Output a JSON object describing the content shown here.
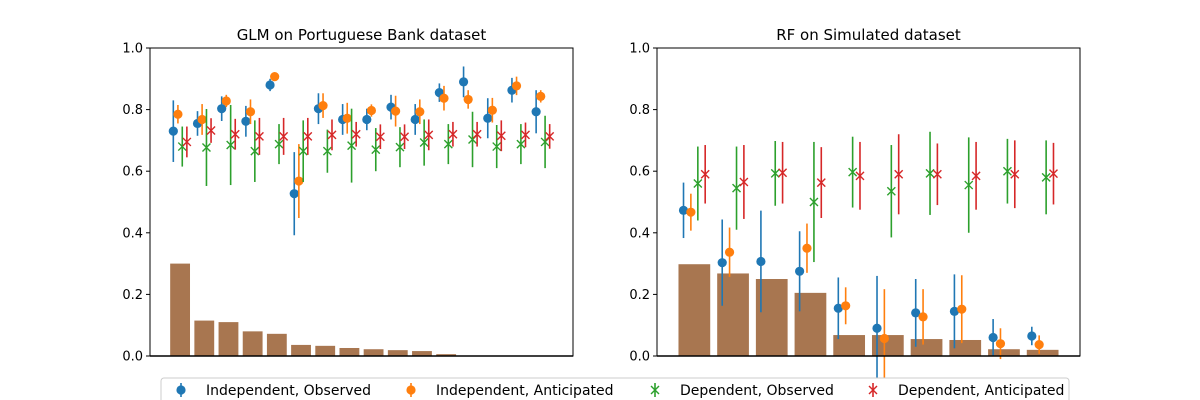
{
  "chart_data": [
    {
      "type": "errorbar+bar",
      "title": "GLM on Portuguese Bank dataset",
      "ylim": [
        0,
        1
      ],
      "yticks": [
        0.0,
        0.2,
        0.4,
        0.6,
        0.8,
        1.0
      ],
      "ytick_labels": [
        "0.0",
        "0.2",
        "0.4",
        "0.6",
        "0.8",
        "1.0"
      ],
      "n_groups": 16,
      "bar_values": [
        0.3,
        0.115,
        0.11,
        0.08,
        0.072,
        0.036,
        0.033,
        0.026,
        0.022,
        0.019,
        0.016,
        0.006,
        0,
        0,
        0,
        0
      ],
      "series": [
        {
          "name": "Independent, Observed",
          "marker": "circle",
          "color": "#1f77b4",
          "values": [
            0.73,
            0.755,
            0.803,
            0.762,
            0.88,
            0.527,
            0.803,
            0.768,
            0.768,
            0.808,
            0.768,
            0.855,
            0.89,
            0.772,
            0.863,
            0.793
          ],
          "err": [
            0.1,
            0.04,
            0.04,
            0.05,
            0.02,
            0.135,
            0.05,
            0.05,
            0.035,
            0.04,
            0.05,
            0.03,
            0.05,
            0.065,
            0.04,
            0.07
          ]
        },
        {
          "name": "Independent, Anticipated",
          "marker": "circle",
          "color": "#ff7f0e",
          "values": [
            0.785,
            0.768,
            0.828,
            0.793,
            0.907,
            0.568,
            0.813,
            0.772,
            0.797,
            0.795,
            0.793,
            0.837,
            0.833,
            0.798,
            0.877,
            0.843
          ],
          "err": [
            0.03,
            0.05,
            0.02,
            0.04,
            0.01,
            0.12,
            0.04,
            0.05,
            0.02,
            0.05,
            0.04,
            0.04,
            0.03,
            0.04,
            0.03,
            0.02
          ]
        },
        {
          "name": "Dependent, Observed",
          "marker": "x",
          "color": "#2ca02c",
          "values": [
            0.68,
            0.677,
            0.685,
            0.665,
            0.688,
            0.665,
            0.665,
            0.683,
            0.67,
            0.678,
            0.693,
            0.688,
            0.703,
            0.68,
            0.688,
            0.695
          ],
          "err": [
            0.065,
            0.125,
            0.13,
            0.1,
            0.065,
            0.1,
            0.07,
            0.12,
            0.07,
            0.065,
            0.075,
            0.065,
            0.09,
            0.07,
            0.065,
            0.085
          ]
        },
        {
          "name": "Dependent, Anticipated",
          "marker": "x",
          "color": "#d62728",
          "values": [
            0.695,
            0.732,
            0.72,
            0.713,
            0.713,
            0.713,
            0.718,
            0.72,
            0.712,
            0.712,
            0.718,
            0.72,
            0.72,
            0.715,
            0.718,
            0.713
          ],
          "err": [
            0.05,
            0.04,
            0.05,
            0.06,
            0.06,
            0.06,
            0.05,
            0.04,
            0.04,
            0.04,
            0.05,
            0.04,
            0.04,
            0.05,
            0.04,
            0.04
          ]
        }
      ]
    },
    {
      "type": "errorbar+bar",
      "title": "RF on Simulated dataset",
      "ylim": [
        0,
        1
      ],
      "yticks": [
        0.0,
        0.2,
        0.4,
        0.6,
        0.8,
        1.0
      ],
      "ytick_labels": [
        "0.0",
        "0.2",
        "0.4",
        "0.6",
        "0.8",
        "1.0"
      ],
      "n_groups": 10,
      "bar_values": [
        0.298,
        0.268,
        0.25,
        0.205,
        0.068,
        0.068,
        0.055,
        0.052,
        0.022,
        0.02
      ],
      "series": [
        {
          "name": "Independent, Observed",
          "marker": "circle",
          "color": "#1f77b4",
          "values": [
            0.473,
            0.303,
            0.307,
            0.275,
            0.155,
            0.09,
            0.14,
            0.145,
            0.06,
            0.065
          ],
          "err": [
            0.09,
            0.14,
            0.165,
            0.13,
            0.1,
            0.17,
            0.11,
            0.12,
            0.06,
            0.03
          ]
        },
        {
          "name": "Independent, Anticipated",
          "marker": "circle",
          "color": "#ff7f0e",
          "values": [
            0.467,
            0.337,
            null,
            0.35,
            0.163,
            0.057,
            0.127,
            0.152,
            0.04,
            0.037
          ],
          "err": [
            0.06,
            0.08,
            null,
            0.08,
            0.06,
            0.16,
            0.09,
            0.11,
            0.05,
            0.03
          ]
        },
        {
          "name": "Dependent, Observed",
          "marker": "x",
          "color": "#2ca02c",
          "values": [
            0.56,
            0.545,
            0.593,
            0.5,
            0.597,
            0.535,
            0.593,
            0.555,
            0.6,
            0.58
          ],
          "err": [
            0.12,
            0.135,
            0.105,
            0.195,
            0.115,
            0.15,
            0.135,
            0.155,
            0.105,
            0.12
          ]
        },
        {
          "name": "Dependent, Anticipated",
          "marker": "x",
          "color": "#d62728",
          "values": [
            0.59,
            0.565,
            0.595,
            0.563,
            0.585,
            0.59,
            0.59,
            0.585,
            0.59,
            0.592
          ],
          "err": [
            0.095,
            0.12,
            0.1,
            0.115,
            0.11,
            0.13,
            0.1,
            0.11,
            0.11,
            0.1
          ]
        }
      ]
    }
  ],
  "bar_color": "#a87650",
  "legend": {
    "placement": "bottom-center",
    "entries": [
      {
        "label": "Independent, Observed",
        "marker": "circle",
        "color": "#1f77b4"
      },
      {
        "label": "Independent, Anticipated",
        "marker": "circle",
        "color": "#ff7f0e"
      },
      {
        "label": "Dependent, Observed",
        "marker": "x",
        "color": "#2ca02c"
      },
      {
        "label": "Dependent, Anticipated",
        "marker": "x",
        "color": "#d62728"
      }
    ]
  }
}
